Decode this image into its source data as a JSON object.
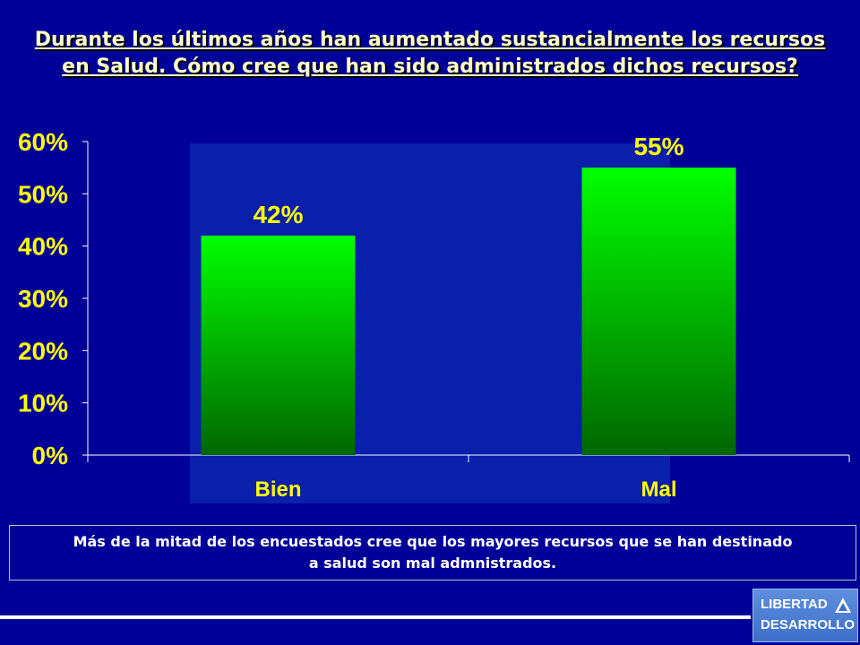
{
  "title": {
    "line1": "Durante los últimos años han aumentado sustancialmente los recursos",
    "line2": "en Salud. Cómo cree que han sido administrados dichos recursos?"
  },
  "chart_data": {
    "type": "bar",
    "categories": [
      "Bien",
      "Mal"
    ],
    "values": [
      42,
      55
    ],
    "data_labels": [
      "42%",
      "55%"
    ],
    "ylim": [
      0,
      60
    ],
    "yticks": [
      "0%",
      "10%",
      "20%",
      "30%",
      "40%",
      "50%",
      "60%"
    ],
    "grid": false,
    "colors": {
      "bar_top": "#00FF00",
      "bar_bottom": "#006600",
      "axis": "#FFFFFF",
      "tick_text": "#FFFF00",
      "plot_bg": "#0A1FAA"
    }
  },
  "note": {
    "line1": "Más de la mitad de los encuestados cree que los mayores recursos que se han destinado",
    "line2": "a salud son mal admnistrados."
  },
  "logo": {
    "line1": "LIBERTAD",
    "line2": "DESARROLLO"
  }
}
